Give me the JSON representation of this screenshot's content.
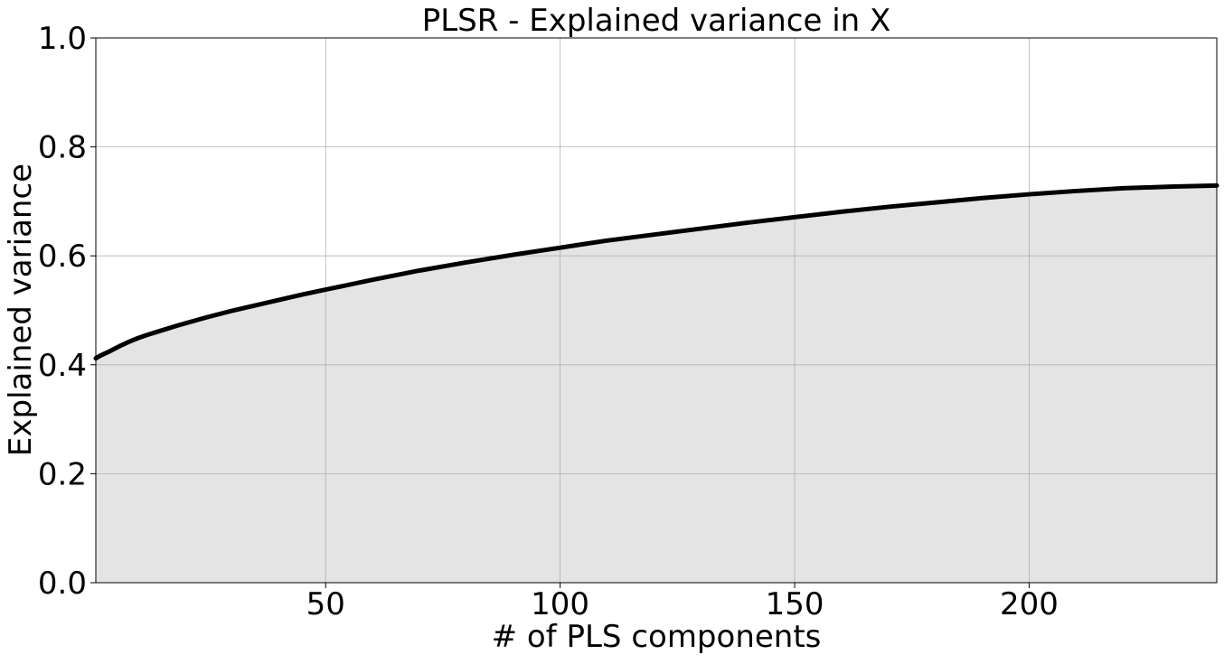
{
  "chart_data": {
    "type": "area",
    "title": "PLSR - Explained variance in X",
    "xlabel": "# of PLS components",
    "ylabel": "Explained variance",
    "xlim": [
      1,
      240
    ],
    "ylim": [
      0.0,
      1.0
    ],
    "x_ticks": [
      50,
      100,
      150,
      200
    ],
    "y_ticks": [
      0.0,
      0.2,
      0.4,
      0.6,
      0.8,
      1.0
    ],
    "x_tick_labels": [
      "50",
      "100",
      "150",
      "200"
    ],
    "y_tick_labels": [
      "0.0",
      "0.2",
      "0.4",
      "0.6",
      "0.8",
      "1.0"
    ],
    "grid": true,
    "line_color": "#000000",
    "fill_color": "#e4e4e4",
    "series": [
      {
        "x": [
          1,
          2,
          4,
          6,
          8,
          10,
          12,
          15,
          18,
          20,
          25,
          30,
          35,
          40,
          45,
          50,
          60,
          70,
          80,
          90,
          100,
          110,
          120,
          130,
          140,
          150,
          160,
          170,
          180,
          190,
          200,
          210,
          220,
          230,
          240
        ],
        "y": [
          0.412,
          0.417,
          0.425,
          0.434,
          0.442,
          0.449,
          0.455,
          0.463,
          0.471,
          0.476,
          0.488,
          0.499,
          0.509,
          0.519,
          0.529,
          0.538,
          0.556,
          0.573,
          0.588,
          0.602,
          0.615,
          0.628,
          0.639,
          0.65,
          0.661,
          0.671,
          0.681,
          0.69,
          0.698,
          0.706,
          0.713,
          0.719,
          0.724,
          0.727,
          0.729
        ]
      }
    ]
  }
}
